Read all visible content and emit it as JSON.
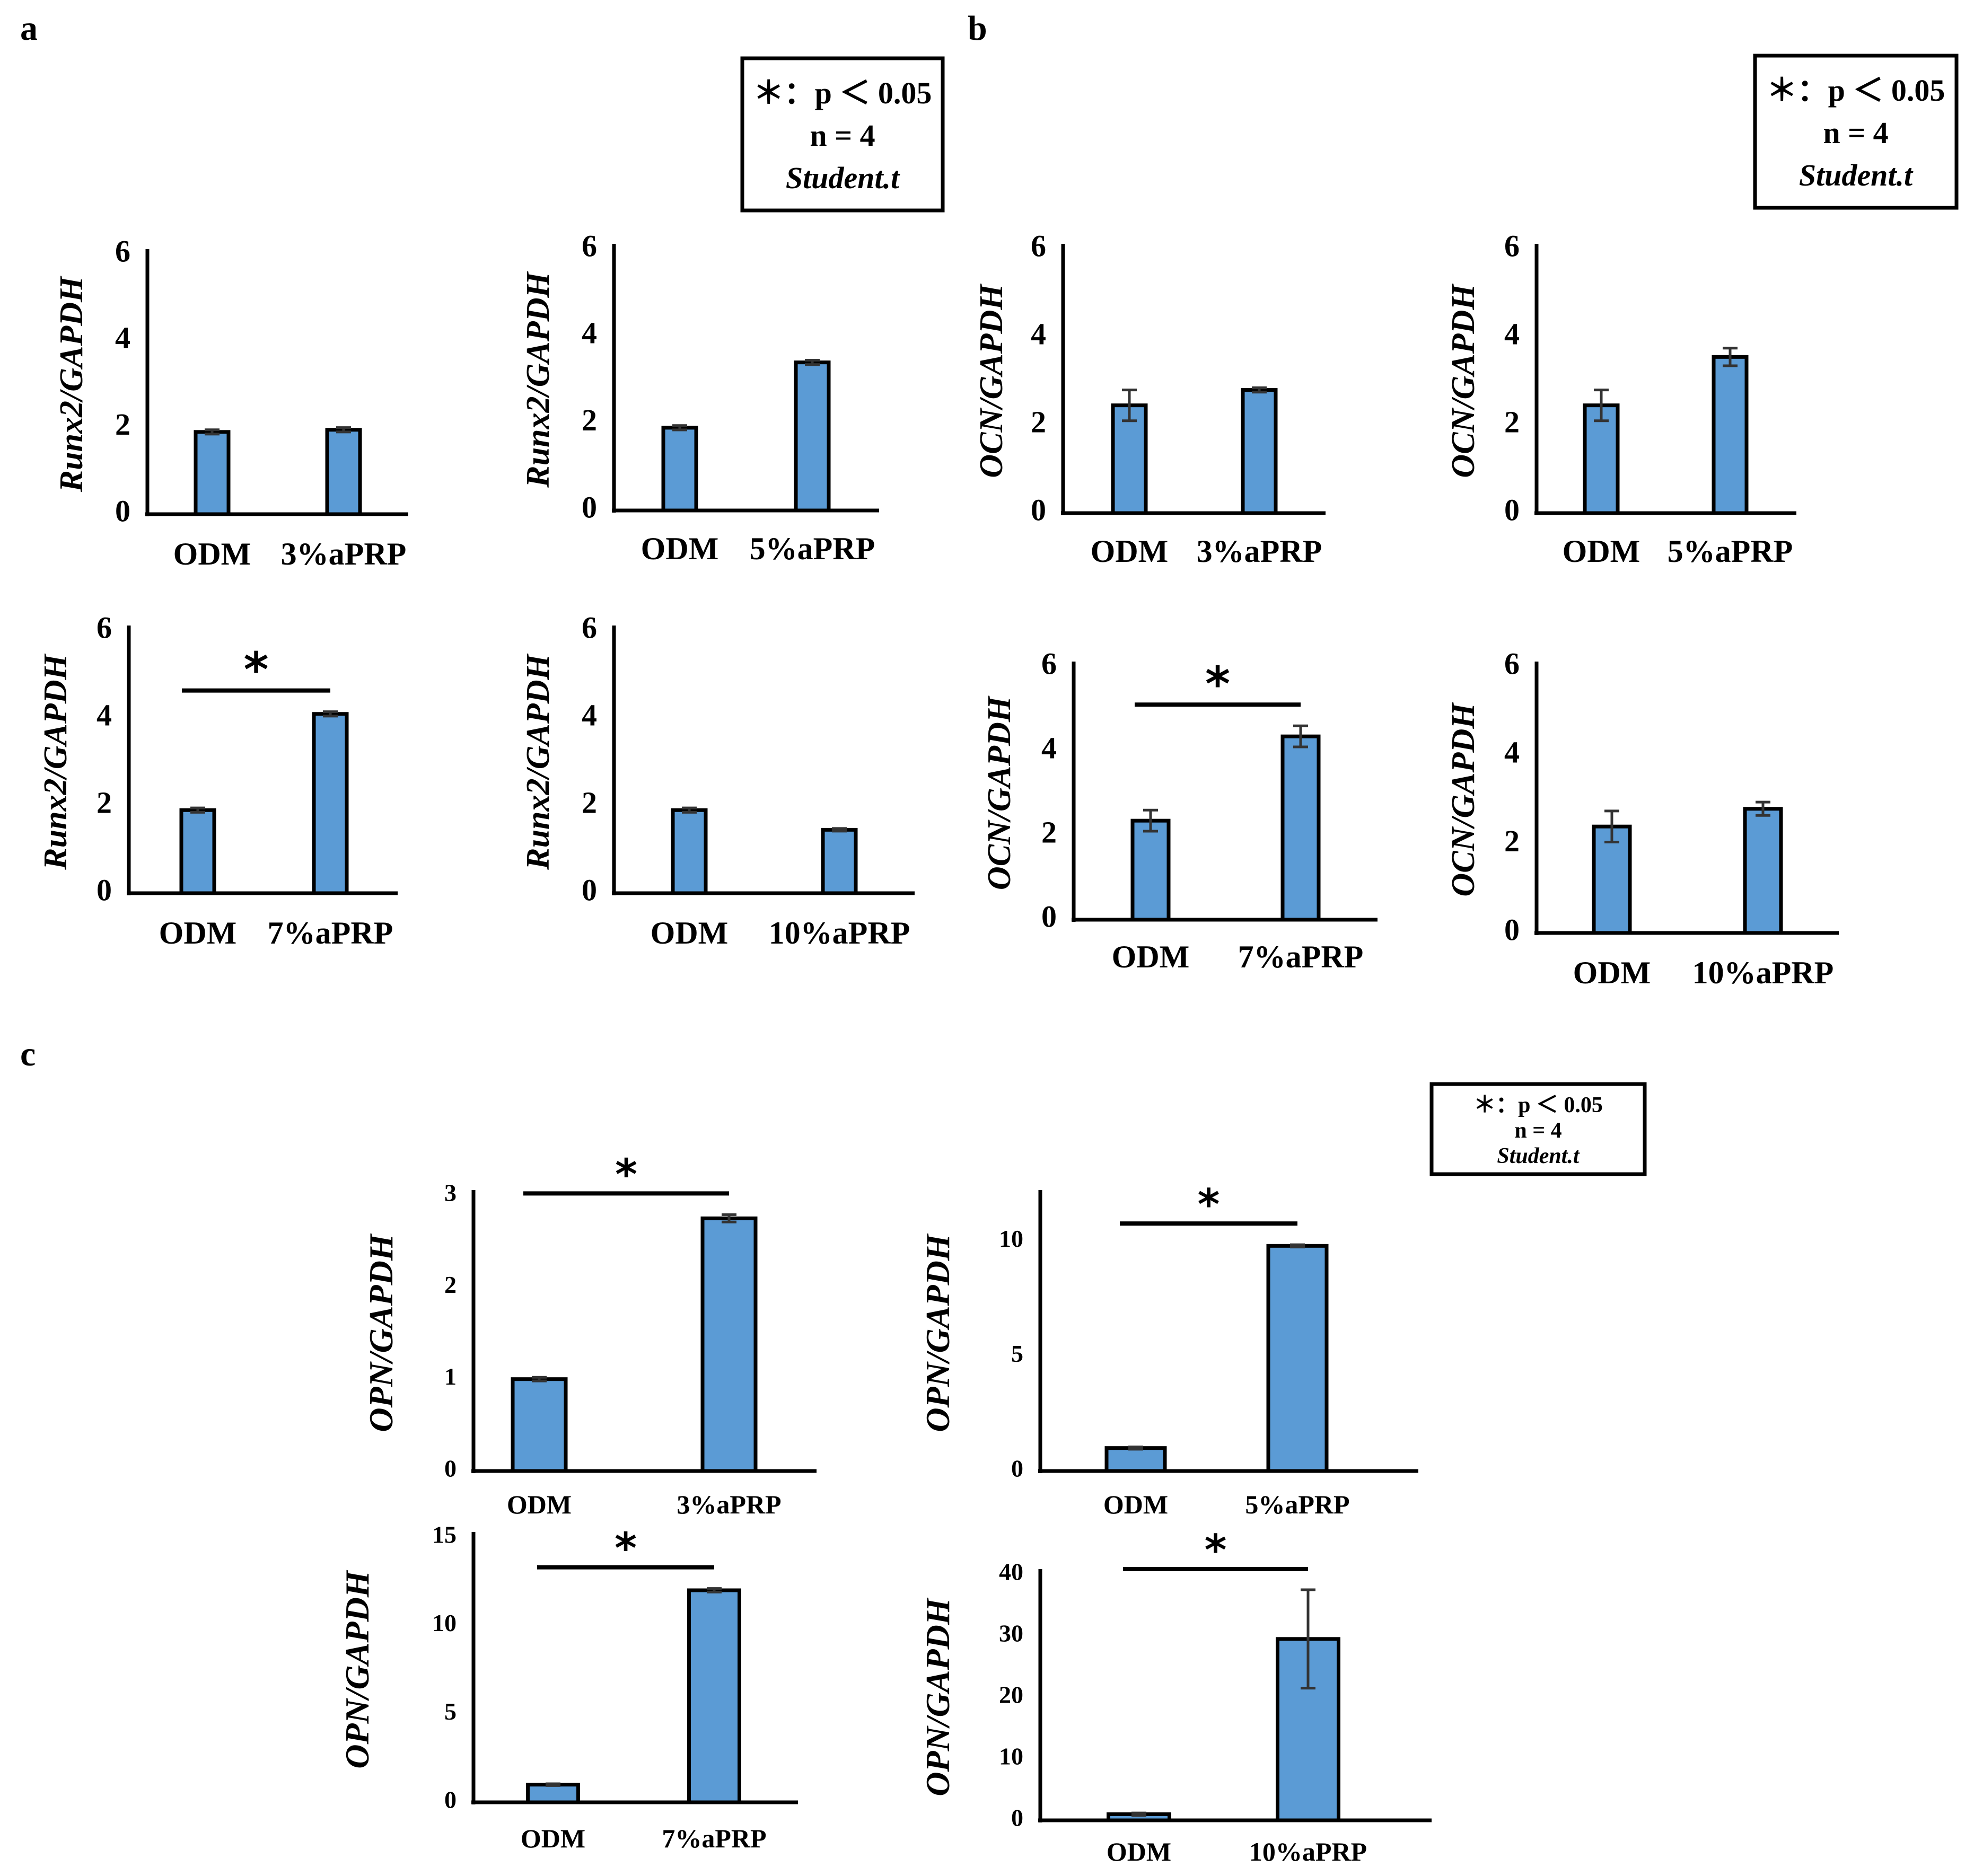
{
  "panel_letters": [
    "a",
    "b",
    "c"
  ],
  "legends": [
    {
      "line1": "＊：p ＜ 0.05",
      "line2": "n = 4",
      "line3": "Student.t"
    },
    {
      "line1": "＊：p ＜ 0.05",
      "line2": "n = 4",
      "line3": "Student.t"
    },
    {
      "line1": "＊：p ＜ 0.05",
      "line2": "n = 4",
      "line3": "Student.t"
    }
  ],
  "chart_data": [
    {
      "type": "bar",
      "panel": "a",
      "ylabel": "Runx2/GAPDH",
      "ylim": [
        0,
        6
      ],
      "yticks": [
        0,
        2,
        4,
        6
      ],
      "categories": [
        "ODM",
        "3%aPRP"
      ],
      "values": [
        1.9,
        1.95
      ],
      "errors": [
        0.05,
        0.05
      ],
      "significance": ""
    },
    {
      "type": "bar",
      "panel": "a",
      "ylabel": "Runx2/GAPDH",
      "ylim": [
        0,
        6
      ],
      "yticks": [
        0,
        2,
        4,
        6
      ],
      "categories": [
        "ODM",
        "5%aPRP"
      ],
      "values": [
        1.9,
        3.4
      ],
      "errors": [
        0.05,
        0.05
      ],
      "significance": ""
    },
    {
      "type": "bar",
      "panel": "a",
      "ylabel": "Runx2/GAPDH",
      "ylim": [
        0,
        6
      ],
      "yticks": [
        0,
        2,
        4,
        6
      ],
      "categories": [
        "ODM",
        "7%aPRP"
      ],
      "values": [
        1.9,
        4.1
      ],
      "errors": [
        0.05,
        0.05
      ],
      "significance": "*"
    },
    {
      "type": "bar",
      "panel": "a",
      "ylabel": "Runx2/GAPDH",
      "ylim": [
        0,
        6
      ],
      "yticks": [
        0,
        2,
        4,
        6
      ],
      "categories": [
        "ODM",
        "10%aPRP"
      ],
      "values": [
        1.9,
        1.45
      ],
      "errors": [
        0.05,
        0.03
      ],
      "significance": ""
    },
    {
      "type": "bar",
      "panel": "b",
      "ylabel": "OCN/GAPDH",
      "ylim": [
        0,
        6
      ],
      "yticks": [
        0,
        2,
        4,
        6
      ],
      "categories": [
        "ODM",
        "3%aPRP"
      ],
      "values": [
        2.45,
        2.8
      ],
      "errors": [
        0.35,
        0.05
      ],
      "significance": ""
    },
    {
      "type": "bar",
      "panel": "b",
      "ylabel": "OCN/GAPDH",
      "ylim": [
        0,
        6
      ],
      "yticks": [
        0,
        2,
        4,
        6
      ],
      "categories": [
        "ODM",
        "5%aPRP"
      ],
      "values": [
        2.45,
        3.55
      ],
      "errors": [
        0.35,
        0.2
      ],
      "significance": ""
    },
    {
      "type": "bar",
      "panel": "b",
      "ylabel": "OCN/GAPDH",
      "ylim": [
        0,
        6
      ],
      "yticks": [
        0,
        2,
        4,
        6
      ],
      "categories": [
        "ODM",
        "7%aPRP"
      ],
      "values": [
        2.35,
        4.35
      ],
      "errors": [
        0.25,
        0.25
      ],
      "significance": "*"
    },
    {
      "type": "bar",
      "panel": "b",
      "ylabel": "OCN/GAPDH",
      "ylim": [
        0,
        6
      ],
      "yticks": [
        0,
        2,
        4,
        6
      ],
      "categories": [
        "ODM",
        "10%aPRP"
      ],
      "values": [
        2.4,
        2.8
      ],
      "errors": [
        0.35,
        0.15
      ],
      "significance": ""
    },
    {
      "type": "bar",
      "panel": "c",
      "ylabel": "OPN/GAPDH",
      "ylim": [
        0,
        3
      ],
      "yticks": [
        0,
        1,
        2,
        3
      ],
      "categories": [
        "ODM",
        "3%aPRP"
      ],
      "values": [
        1.0,
        2.75
      ],
      "errors": [
        0.02,
        0.04
      ],
      "significance": "*"
    },
    {
      "type": "bar",
      "panel": "c",
      "ylabel": "OPN/GAPDH",
      "ylim": [
        0,
        12
      ],
      "yticks": [
        0,
        5,
        10
      ],
      "categories": [
        "ODM",
        "5%aPRP"
      ],
      "values": [
        1.0,
        9.8
      ],
      "errors": [
        0.05,
        0.05
      ],
      "significance": "*"
    },
    {
      "type": "bar",
      "panel": "c",
      "ylabel": "OPN/GAPDH",
      "ylim": [
        0,
        15
      ],
      "yticks": [
        0,
        5,
        10,
        15
      ],
      "categories": [
        "ODM",
        "7%aPRP"
      ],
      "values": [
        1.0,
        12.0
      ],
      "errors": [
        0.05,
        0.1
      ],
      "significance": "*"
    },
    {
      "type": "bar",
      "panel": "c",
      "ylabel": "OPN/GAPDH",
      "ylim": [
        0,
        40
      ],
      "yticks": [
        0,
        10,
        20,
        30,
        40
      ],
      "categories": [
        "ODM",
        "10%aPRP"
      ],
      "values": [
        1.0,
        29.5
      ],
      "errors": [
        0.2,
        8.0
      ],
      "significance": "*"
    }
  ]
}
